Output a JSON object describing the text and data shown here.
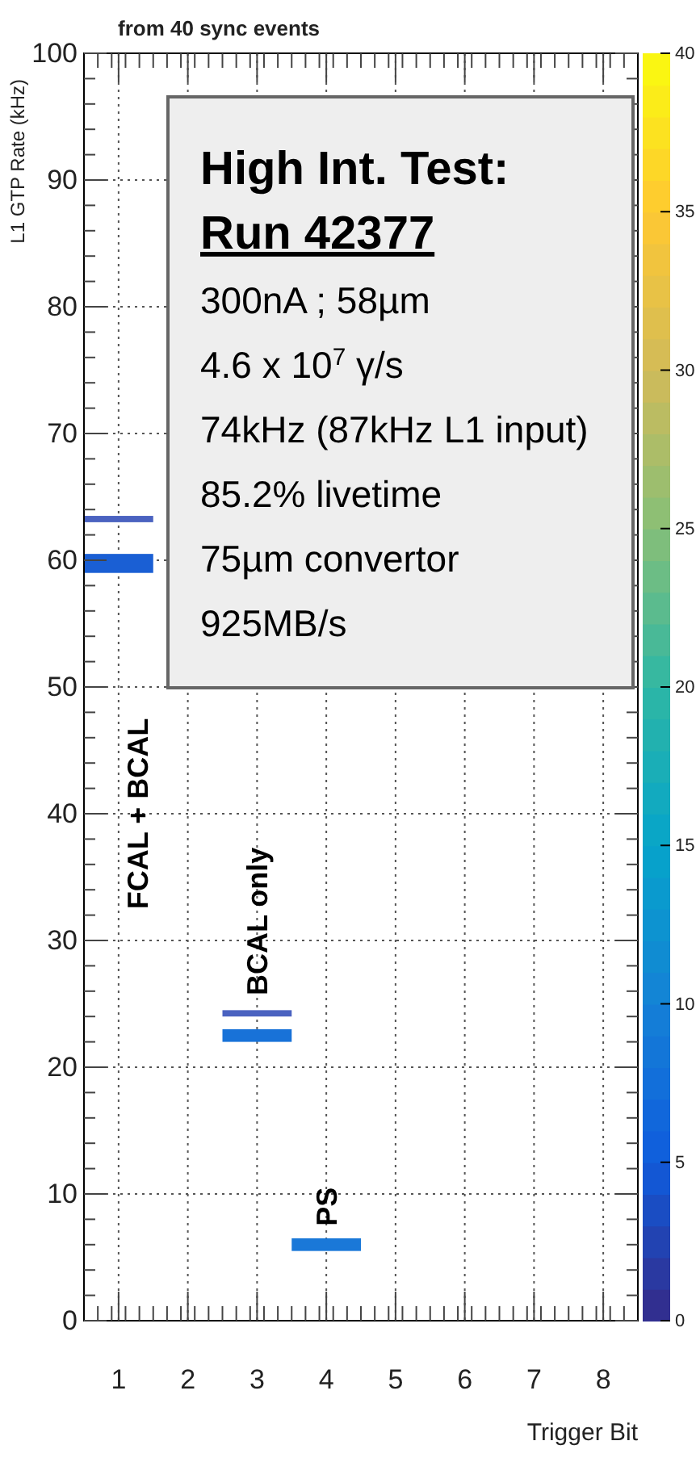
{
  "chart_data": {
    "type": "bar",
    "title": "from 40 sync events",
    "xlabel": "Trigger Bit",
    "ylabel": "L1 GTP Rate (kHz)",
    "categories": [
      "1",
      "2",
      "3",
      "4",
      "5",
      "6",
      "7",
      "8"
    ],
    "series": [
      {
        "base": [
          59,
          null,
          22,
          5.5,
          null,
          null,
          null,
          null
        ],
        "values": [
          1.5,
          null,
          1,
          1,
          null,
          null,
          null,
          null
        ],
        "colors": [
          "#1a5fd4",
          null,
          "#1872d8",
          "#1a78d8",
          null,
          null,
          null,
          null
        ]
      },
      {
        "base": [
          63,
          null,
          24,
          null,
          null,
          null,
          null,
          null
        ],
        "values": [
          0.5,
          null,
          0.5,
          null,
          null,
          null,
          null,
          null
        ],
        "colors": [
          "#4a62c0",
          null,
          "#4a62c0",
          null,
          null,
          null,
          null,
          null
        ]
      }
    ],
    "clim": [
      0,
      40
    ],
    "cticks": [
      0,
      5,
      10,
      15,
      20,
      25,
      30,
      35,
      40
    ],
    "ylim": [
      0,
      100
    ],
    "yticks": [
      0,
      10,
      20,
      30,
      40,
      50,
      60,
      70,
      80,
      90,
      100
    ],
    "grid": true,
    "annotations": [
      "FCAL + BCAL",
      "BCAL only",
      "PS",
      "High Int. Test:",
      "Run 42377",
      "300nA ; 58µm",
      "4.6 x 10$^{7}$ γ/s",
      "74kHz (87kHz L1 input)",
      "85.2% livetime",
      "75µm convertor",
      "925MB/s"
    ]
  }
}
